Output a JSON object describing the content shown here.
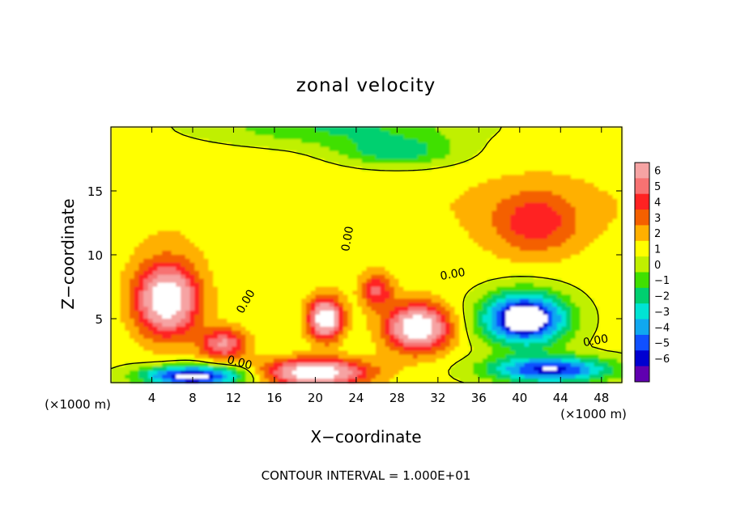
{
  "chart_data": {
    "type": "heatmap",
    "title": "zonal velocity",
    "xlabel": "X−coordinate",
    "ylabel": "Z−coordinate",
    "x_unit_left": "(×1000 m)",
    "x_unit_right": "(×1000 m)",
    "xlim": [
      0,
      50
    ],
    "ylim": [
      0,
      20
    ],
    "x_ticks": [
      4,
      8,
      12,
      16,
      20,
      24,
      28,
      32,
      36,
      40,
      44,
      48
    ],
    "y_ticks": [
      5,
      10,
      15
    ],
    "colorbar": {
      "ticks": [
        6,
        5,
        4,
        3,
        2,
        1,
        0,
        -1,
        -2,
        -3,
        -4,
        -5,
        -6
      ],
      "tick_labels": [
        "6",
        "5",
        "4",
        "3",
        "2",
        "1",
        "0",
        "−1",
        "−2",
        "−3",
        "−4",
        "−5",
        "−6"
      ],
      "colors": [
        "#f6a3a3",
        "#f77272",
        "#ff2222",
        "#f46000",
        "#ffb000",
        "#ffff00",
        "#c0f000",
        "#40e000",
        "#00d070",
        "#00e4d4",
        "#10a8f0",
        "#1050ff",
        "#0000d0",
        "#6000b0"
      ]
    },
    "field_features": [
      {
        "x": 5.5,
        "z": 6.5,
        "value": 8,
        "sx": 3.0,
        "sz": 2.8
      },
      {
        "x": 11,
        "z": 3.0,
        "value": 5,
        "sx": 2.2,
        "sz": 1.2
      },
      {
        "x": 21,
        "z": 5.0,
        "value": 8,
        "sx": 1.6,
        "sz": 1.6
      },
      {
        "x": 30,
        "z": 4.3,
        "value": 8,
        "sx": 3.0,
        "sz": 1.8
      },
      {
        "x": 26,
        "z": 7.2,
        "value": 4,
        "sx": 1.5,
        "sz": 1.3
      },
      {
        "x": 41.5,
        "z": 12.5,
        "value": 3,
        "sx": 4.2,
        "sz": 2.5
      },
      {
        "x": 40.5,
        "z": 5.0,
        "value": -9,
        "sx": 4.0,
        "sz": 2.0
      },
      {
        "x": 20,
        "z": 0.8,
        "value": 8,
        "sx": 5.0,
        "sz": 1.0
      },
      {
        "x": 8,
        "z": 0.5,
        "value": -8,
        "sx": 5.0,
        "sz": 0.8
      },
      {
        "x": 43,
        "z": 1.0,
        "value": -7,
        "sx": 6.0,
        "sz": 1.0
      },
      {
        "x": 28,
        "z": 18.0,
        "value": -3,
        "sx": 6.0,
        "sz": 1.2
      },
      {
        "x": 22,
        "z": 20.0,
        "value": -2.5,
        "sx": 12.0,
        "sz": 1.5
      }
    ],
    "contour_label": "0.00",
    "contour_interval_text": "CONTOUR INTERVAL = 1.000E+01"
  }
}
